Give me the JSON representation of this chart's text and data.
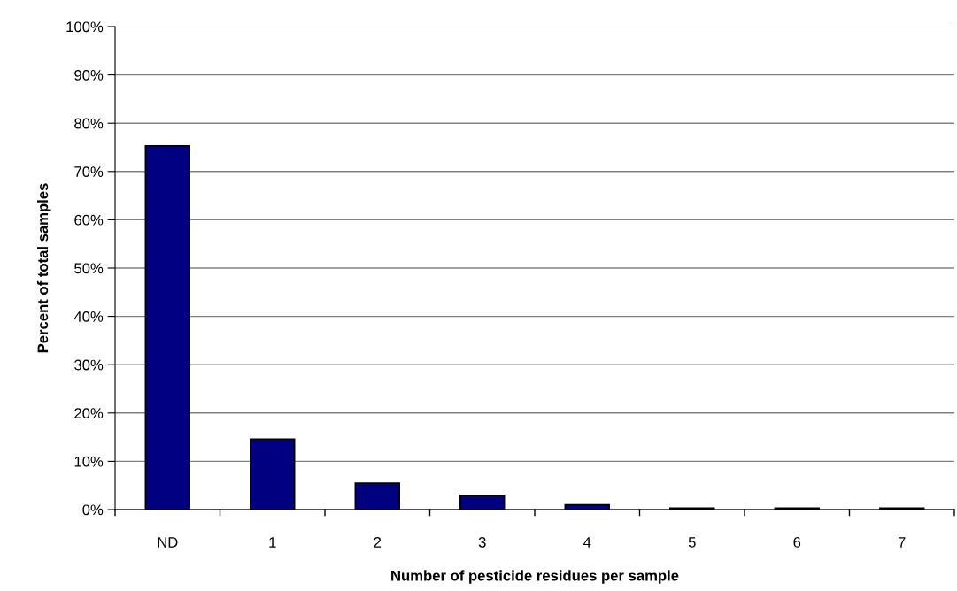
{
  "chart_data": {
    "type": "bar",
    "xlabel": "Number of pesticide residues per sample",
    "ylabel": "Percent of total samples",
    "categories": [
      "ND",
      "1",
      "2",
      "3",
      "4",
      "5",
      "6",
      "7"
    ],
    "values": [
      75.3,
      14.6,
      5.5,
      2.9,
      1.0,
      0.3,
      0.3,
      0.3
    ],
    "color": "#000080",
    "ylim": [
      0,
      100
    ],
    "yticks": [
      {
        "value": 0,
        "label": "0%"
      },
      {
        "value": 10,
        "label": "10%"
      },
      {
        "value": 20,
        "label": "20%"
      },
      {
        "value": 30,
        "label": "30%"
      },
      {
        "value": 40,
        "label": "40%"
      },
      {
        "value": 50,
        "label": "50%"
      },
      {
        "value": 60,
        "label": "60%"
      },
      {
        "value": 70,
        "label": "70%"
      },
      {
        "value": 80,
        "label": "80%"
      },
      {
        "value": 90,
        "label": "90%"
      },
      {
        "value": 100,
        "label": "100%"
      }
    ],
    "grid": "y"
  }
}
